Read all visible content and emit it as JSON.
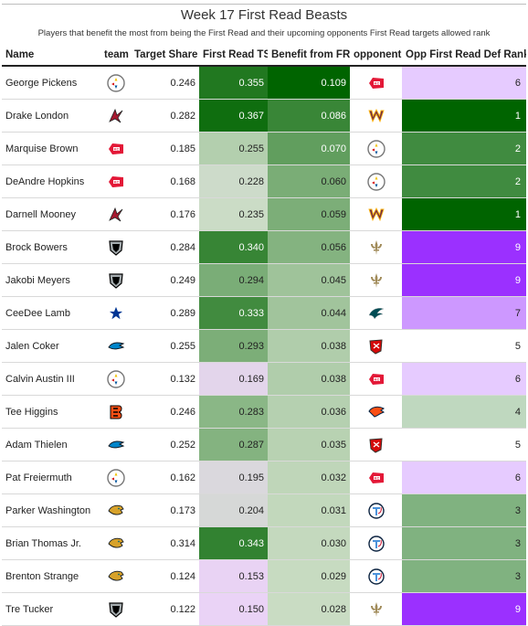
{
  "title": "Week 17 First Read Beasts",
  "subtitle": "Players that benefit the most from being the First Read and their upcoming opponents First Read targets allowed rank",
  "columns": {
    "name": "Name",
    "team": "team",
    "target_share": "Target Share",
    "first_read_ts": "First Read TS",
    "benefit": "Benefit from FR",
    "opponent": "opponent",
    "opp_rank": "Opp First Read Def Rank"
  },
  "chart_data": {
    "type": "table",
    "title": "Week 17 First Read Beasts",
    "subtitle": "Players that benefit the most from being the First Read and their upcoming opponents First Read targets allowed rank",
    "columns": [
      "Name",
      "team",
      "Target Share",
      "First Read TS",
      "Benefit from FR",
      "opponent",
      "Opp First Read Def Rank"
    ],
    "rows": [
      {
        "name": "George Pickens",
        "team": "steelers-logo",
        "target_share": "0.246",
        "first_read_ts": "0.355",
        "benefit": "0.109",
        "opponent": "chiefs-logo",
        "opp_rank": "6"
      },
      {
        "name": "Drake London",
        "team": "falcons-logo",
        "target_share": "0.282",
        "first_read_ts": "0.367",
        "benefit": "0.086",
        "opponent": "commanders-logo",
        "opp_rank": "1"
      },
      {
        "name": "Marquise Brown",
        "team": "chiefs-logo",
        "target_share": "0.185",
        "first_read_ts": "0.255",
        "benefit": "0.070",
        "opponent": "steelers-logo",
        "opp_rank": "2"
      },
      {
        "name": "DeAndre Hopkins",
        "team": "chiefs-logo",
        "target_share": "0.168",
        "first_read_ts": "0.228",
        "benefit": "0.060",
        "opponent": "steelers-logo",
        "opp_rank": "2"
      },
      {
        "name": "Darnell Mooney",
        "team": "falcons-logo",
        "target_share": "0.176",
        "first_read_ts": "0.235",
        "benefit": "0.059",
        "opponent": "commanders-logo",
        "opp_rank": "1"
      },
      {
        "name": "Brock Bowers",
        "team": "raiders-logo",
        "target_share": "0.284",
        "first_read_ts": "0.340",
        "benefit": "0.056",
        "opponent": "saints-logo",
        "opp_rank": "9"
      },
      {
        "name": "Jakobi Meyers",
        "team": "raiders-logo",
        "target_share": "0.249",
        "first_read_ts": "0.294",
        "benefit": "0.045",
        "opponent": "saints-logo",
        "opp_rank": "9"
      },
      {
        "name": "CeeDee Lamb",
        "team": "cowboys-logo",
        "target_share": "0.289",
        "first_read_ts": "0.333",
        "benefit": "0.044",
        "opponent": "eagles-logo",
        "opp_rank": "7"
      },
      {
        "name": "Jalen Coker",
        "team": "panthers-logo",
        "target_share": "0.255",
        "first_read_ts": "0.293",
        "benefit": "0.038",
        "opponent": "buccaneers-logo",
        "opp_rank": "5"
      },
      {
        "name": "Calvin Austin III",
        "team": "steelers-logo",
        "target_share": "0.132",
        "first_read_ts": "0.169",
        "benefit": "0.038",
        "opponent": "chiefs-logo",
        "opp_rank": "6"
      },
      {
        "name": "Tee Higgins",
        "team": "bengals-logo",
        "target_share": "0.246",
        "first_read_ts": "0.283",
        "benefit": "0.036",
        "opponent": "broncos-logo",
        "opp_rank": "4"
      },
      {
        "name": "Adam Thielen",
        "team": "panthers-logo",
        "target_share": "0.252",
        "first_read_ts": "0.287",
        "benefit": "0.035",
        "opponent": "buccaneers-logo",
        "opp_rank": "5"
      },
      {
        "name": "Pat Freiermuth",
        "team": "steelers-logo",
        "target_share": "0.162",
        "first_read_ts": "0.195",
        "benefit": "0.032",
        "opponent": "chiefs-logo",
        "opp_rank": "6"
      },
      {
        "name": "Parker Washington",
        "team": "jaguars-logo",
        "target_share": "0.173",
        "first_read_ts": "0.204",
        "benefit": "0.031",
        "opponent": "titans-logo",
        "opp_rank": "3"
      },
      {
        "name": "Brian Thomas Jr.",
        "team": "jaguars-logo",
        "target_share": "0.314",
        "first_read_ts": "0.343",
        "benefit": "0.030",
        "opponent": "titans-logo",
        "opp_rank": "3"
      },
      {
        "name": "Brenton Strange",
        "team": "jaguars-logo",
        "target_share": "0.124",
        "first_read_ts": "0.153",
        "benefit": "0.029",
        "opponent": "titans-logo",
        "opp_rank": "3"
      },
      {
        "name": "Tre Tucker",
        "team": "raiders-logo",
        "target_share": "0.122",
        "first_read_ts": "0.150",
        "benefit": "0.028",
        "opponent": "saints-logo",
        "opp_rank": "9"
      }
    ]
  }
}
